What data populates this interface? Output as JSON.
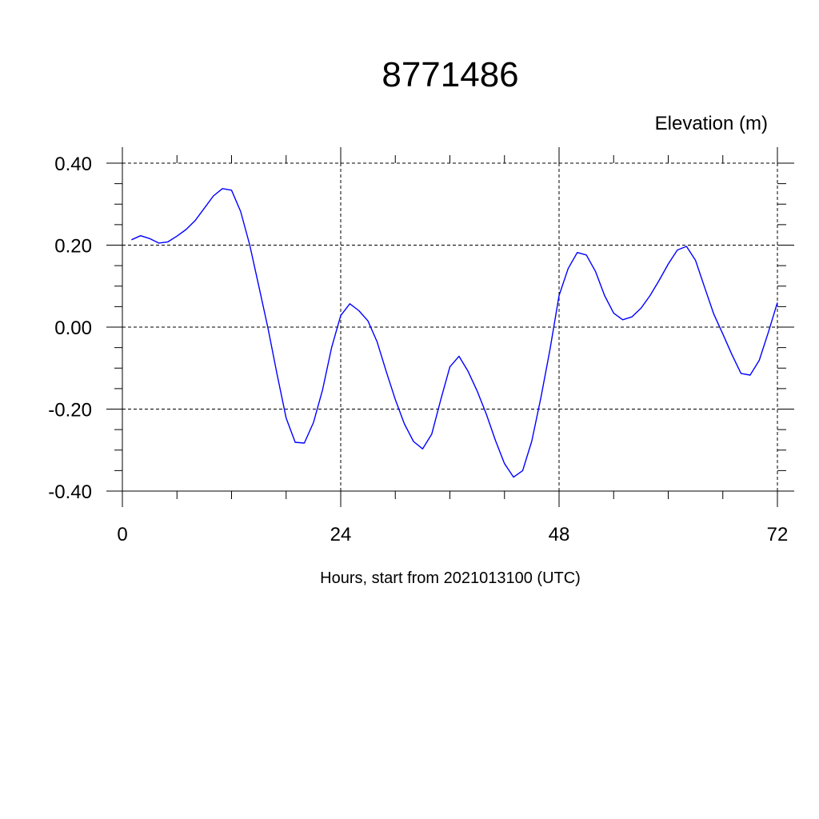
{
  "chart_data": {
    "type": "line",
    "title": "8771486",
    "ylabel": "Elevation (m)",
    "xlabel": "Hours, start from 2021013100 (UTC)",
    "xlim": [
      0,
      72
    ],
    "ylim": [
      -0.4,
      0.4
    ],
    "xticks": [
      0,
      24,
      48,
      72
    ],
    "xtick_labels": [
      "0",
      "24",
      "48",
      "72"
    ],
    "yticks": [
      0.4,
      0.2,
      0.0,
      -0.2,
      -0.4
    ],
    "ytick_labels": [
      "0.40",
      "0.20",
      "0.00",
      "-0.20",
      "-0.40"
    ],
    "grid": true,
    "line_color": "#0000ff",
    "series": [
      {
        "x": [
          1,
          2,
          3,
          4,
          5,
          6,
          7,
          8,
          9,
          10,
          11,
          12,
          13,
          14,
          15,
          16,
          17,
          18,
          19,
          20,
          21,
          22,
          23,
          24,
          25,
          26,
          27,
          28,
          29,
          30,
          31,
          32,
          33,
          34,
          35,
          36,
          37,
          38,
          39,
          40,
          41,
          42,
          43,
          44,
          45,
          46,
          47,
          48,
          49,
          50,
          51,
          52,
          53,
          54,
          55,
          56,
          57,
          58,
          59,
          60,
          61,
          62,
          63,
          64,
          65,
          66,
          67,
          68,
          69,
          70,
          71,
          72
        ],
        "y": [
          0.213,
          0.223,
          0.216,
          0.205,
          0.208,
          0.222,
          0.238,
          0.26,
          0.29,
          0.32,
          0.338,
          0.334,
          0.282,
          0.2,
          0.1,
          -0.002,
          -0.115,
          -0.222,
          -0.281,
          -0.283,
          -0.233,
          -0.153,
          -0.05,
          0.028,
          0.057,
          0.04,
          0.015,
          -0.036,
          -0.108,
          -0.177,
          -0.236,
          -0.279,
          -0.297,
          -0.261,
          -0.177,
          -0.097,
          -0.071,
          -0.108,
          -0.156,
          -0.212,
          -0.276,
          -0.333,
          -0.366,
          -0.35,
          -0.278,
          -0.172,
          -0.055,
          0.077,
          0.143,
          0.182,
          0.176,
          0.136,
          0.077,
          0.034,
          0.018,
          0.025,
          0.046,
          0.077,
          0.114,
          0.154,
          0.188,
          0.197,
          0.163,
          0.097,
          0.032,
          -0.017,
          -0.067,
          -0.113,
          -0.117,
          -0.081,
          -0.013,
          0.06
        ]
      }
    ]
  }
}
